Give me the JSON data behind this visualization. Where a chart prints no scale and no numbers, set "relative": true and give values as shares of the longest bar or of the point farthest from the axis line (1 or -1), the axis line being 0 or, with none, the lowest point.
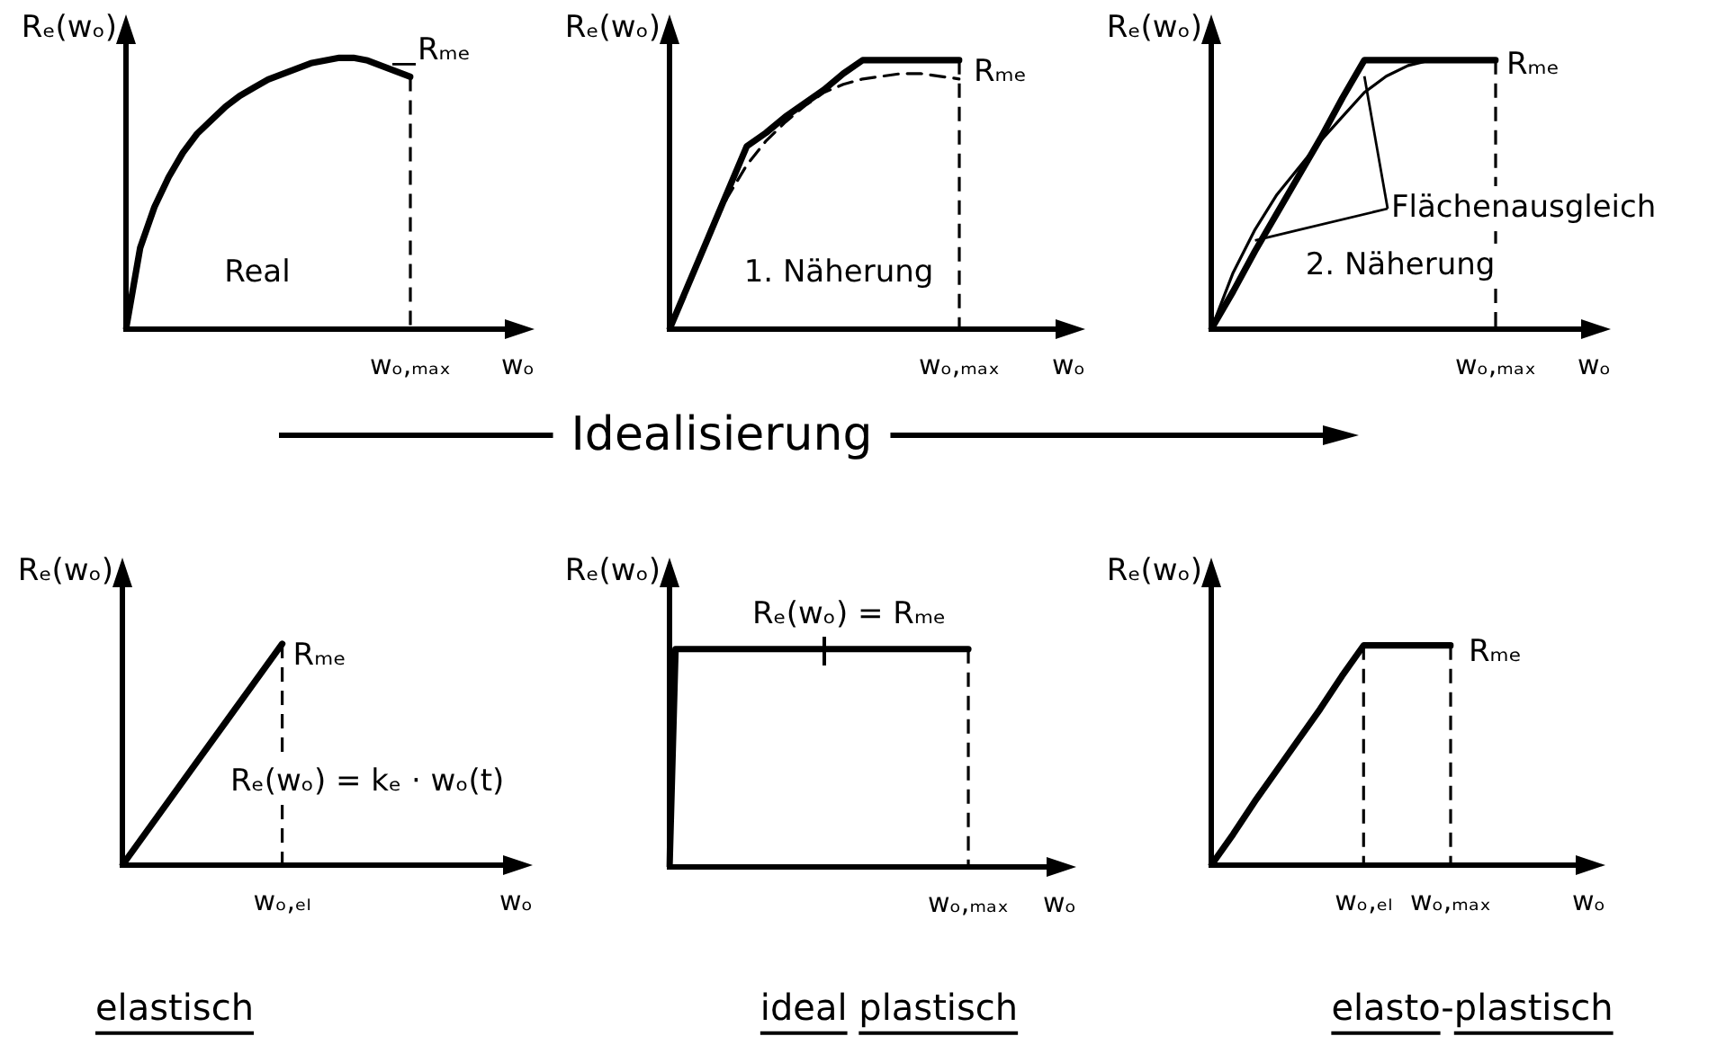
{
  "chart_data": [
    {
      "type": "line",
      "title": "Real",
      "xlabel": "wₒ",
      "ylabel": "Rₑ(wₒ)",
      "relative": true,
      "categories": [
        null,
        null,
        null,
        null,
        null,
        null,
        null,
        null,
        null,
        null,
        null,
        null,
        null,
        null,
        null,
        null,
        null,
        null,
        null,
        null,
        null
      ],
      "series": [
        {
          "color": "#000000",
          "values": [
            0,
            0.3,
            0.45,
            0.56,
            0.65,
            0.72,
            0.77,
            0.82,
            0.86,
            0.89,
            0.92,
            0.94,
            0.96,
            0.98,
            0.99,
            1,
            1,
            0.99,
            0.97,
            0.95,
            0.93
          ]
        }
      ],
      "annotations": [
        "Rₘₑ",
        "wₒ,ₘₐₓ"
      ]
    },
    {
      "type": "line",
      "title": "1. Näherung",
      "xlabel": "wₒ",
      "ylabel": "Rₑ(wₒ)",
      "relative": true,
      "categories": [
        null,
        null,
        null,
        null,
        null,
        null,
        null,
        null,
        null,
        null,
        null,
        null,
        null,
        null,
        null,
        null
      ],
      "series": [
        {
          "color": "#000000",
          "values": [
            0,
            0.17,
            0.34,
            0.51,
            0.68,
            0.73,
            0.79,
            0.84,
            0.89,
            0.95,
            1,
            1,
            1,
            1,
            1,
            1
          ]
        },
        {
          "color": "#000000",
          "line_style": "dashed",
          "values": [
            0,
            0.17,
            0.34,
            0.49,
            0.61,
            0.7,
            0.77,
            0.83,
            0.88,
            0.91,
            0.93,
            0.94,
            0.95,
            0.95,
            0.94,
            0.93
          ]
        }
      ],
      "annotations": [
        "Rₘₑ",
        "wₒ,ₘₐₓ"
      ]
    },
    {
      "type": "line",
      "title": "2. Näherung",
      "xlabel": "wₒ",
      "ylabel": "Rₑ(wₒ)",
      "relative": true,
      "categories": [
        null,
        null,
        null,
        null,
        null,
        null,
        null,
        null,
        null,
        null,
        null,
        null,
        null,
        null
      ],
      "series": [
        {
          "color": "#000000",
          "values": [
            0,
            0.14,
            0.29,
            0.43,
            0.57,
            0.71,
            0.86,
            1,
            1,
            1,
            1,
            1,
            1,
            1
          ]
        },
        {
          "color": "#000000",
          "values": [
            0,
            0.21,
            0.37,
            0.5,
            0.6,
            0.7,
            0.79,
            0.88,
            0.94,
            0.98,
            1,
            null,
            null,
            null
          ]
        }
      ],
      "annotations": [
        "Rₘₑ",
        "Flächenausgleich",
        "wₒ,ₘₐₓ"
      ]
    },
    {
      "type": "other",
      "title": "Idealisierung"
    },
    {
      "type": "line",
      "title": "elastisch",
      "xlabel": "wₒ",
      "ylabel": "Rₑ(wₒ)",
      "relative": true,
      "categories": [
        null,
        null,
        null,
        null,
        null,
        null
      ],
      "series": [
        {
          "color": "#000000",
          "values": [
            0,
            0.5,
            1,
            null,
            null,
            null
          ]
        }
      ],
      "annotations": [
        "Rₘₑ",
        "Rₑ(wₒ) = kₑ · wₒ(t)",
        "wₒ,ₑₗ"
      ]
    },
    {
      "type": "line",
      "title": "ideal plastisch",
      "xlabel": "wₒ",
      "ylabel": "Rₑ(wₒ)",
      "relative": true,
      "categories": [
        null,
        null,
        null,
        null,
        null,
        null,
        null,
        null,
        null,
        null,
        null,
        null,
        null,
        null,
        null,
        null,
        null,
        null,
        null,
        null,
        null,
        null,
        null,
        null,
        null,
        null,
        null,
        null,
        null,
        null,
        null,
        null,
        null,
        null,
        null,
        null,
        null,
        null,
        null,
        null,
        null,
        null,
        null,
        null,
        null,
        null,
        null,
        null,
        null,
        null,
        null,
        null,
        null,
        null,
        null,
        null,
        null,
        null,
        null,
        null
      ],
      "series": [
        {
          "color": "#000000",
          "values": [
            0,
            1,
            1,
            1,
            1,
            1,
            1,
            1,
            1,
            1,
            1,
            1,
            1,
            1,
            1,
            1,
            1,
            1,
            1,
            1,
            1,
            1,
            1,
            1,
            1,
            1,
            1,
            1,
            1,
            1,
            1,
            1,
            1,
            1,
            1,
            1,
            1,
            1,
            1,
            1,
            1,
            1,
            1,
            1,
            1,
            1,
            1,
            1,
            1,
            1,
            1,
            null,
            null,
            null,
            null,
            null,
            null,
            null,
            null,
            null
          ]
        }
      ],
      "annotations": [
        "Rₑ(wₒ) = Rₘₑ",
        "wₒ,ₘₐₓ"
      ]
    },
    {
      "type": "line",
      "title": "elasto-plastisch",
      "xlabel": "wₒ",
      "ylabel": "Rₑ(wₒ)",
      "relative": true,
      "categories": [
        null,
        null,
        null,
        null,
        null,
        null,
        null,
        "wₒ,ₑₗ",
        null,
        null,
        null,
        "wₒ,ₘₐₓ"
      ],
      "series": [
        {
          "color": "#000000",
          "values": [
            0,
            0.14,
            0.29,
            0.43,
            0.57,
            0.71,
            0.86,
            1,
            1,
            1,
            1,
            1
          ]
        }
      ],
      "ref_lines": [
        {
          "axis": "x",
          "value": "wₒ,ₑₗ",
          "line_style": "dashed"
        },
        {
          "axis": "x",
          "value": "wₒ,ₘₐₓ",
          "line_style": "dashed"
        }
      ],
      "annotations": [
        {
          "text": "Rₘₑ",
          "x": "wₒ,ₘₐₓ",
          "y": 1
        }
      ]
    }
  ]
}
